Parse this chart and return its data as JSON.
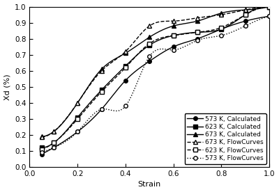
{
  "title": "",
  "xlabel": "Strain",
  "ylabel": "Xd (%)",
  "xlim": [
    0.0,
    1.0
  ],
  "ylim": [
    0.0,
    1.0
  ],
  "series": {
    "s573_calc": {
      "x": [
        0.05,
        0.1,
        0.2,
        0.3,
        0.4,
        0.5,
        0.6,
        0.7,
        0.8,
        0.9,
        1.0
      ],
      "y": [
        0.08,
        0.12,
        0.22,
        0.36,
        0.54,
        0.66,
        0.75,
        0.8,
        0.86,
        0.91,
        0.94
      ],
      "label": "573 K, Calculated",
      "linestyle": "-",
      "marker": "o",
      "color": "#000000",
      "markerfacecolor": "#000000"
    },
    "s623_calc": {
      "x": [
        0.05,
        0.1,
        0.2,
        0.3,
        0.4,
        0.5,
        0.6,
        0.7,
        0.8,
        0.9,
        1.0
      ],
      "y": [
        0.12,
        0.15,
        0.31,
        0.48,
        0.63,
        0.76,
        0.82,
        0.84,
        0.86,
        0.95,
        1.0
      ],
      "label": "623 K, Calculated",
      "linestyle": "-",
      "marker": "s",
      "color": "#000000",
      "markerfacecolor": "#000000"
    },
    "s673_calc": {
      "x": [
        0.05,
        0.1,
        0.2,
        0.3,
        0.4,
        0.5,
        0.6,
        0.7,
        0.8,
        0.9,
        1.0
      ],
      "y": [
        0.19,
        0.22,
        0.4,
        0.61,
        0.71,
        0.81,
        0.88,
        0.91,
        0.96,
        0.98,
        1.0
      ],
      "label": "673 K, Calculated",
      "linestyle": "-",
      "marker": "^",
      "color": "#000000",
      "markerfacecolor": "#000000"
    },
    "s673_flow": {
      "x": [
        0.05,
        0.1,
        0.2,
        0.3,
        0.4,
        0.5,
        0.6,
        0.7,
        0.8,
        0.9,
        1.0
      ],
      "y": [
        0.185,
        0.22,
        0.4,
        0.6,
        0.72,
        0.88,
        0.91,
        0.93,
        0.95,
        0.98,
        1.0
      ],
      "label": "673 K, FlowCurves",
      "linestyle": "--",
      "marker": "^",
      "markerfacecolor": "white",
      "color": "#000000"
    },
    "s623_flow": {
      "x": [
        0.05,
        0.1,
        0.2,
        0.3,
        0.4,
        0.5,
        0.6,
        0.7,
        0.8,
        0.9,
        1.0
      ],
      "y": [
        0.11,
        0.15,
        0.3,
        0.47,
        0.62,
        0.77,
        0.82,
        0.84,
        0.87,
        0.95,
        1.0
      ],
      "label": "623 K, FlowCurves",
      "linestyle": "--",
      "marker": "s",
      "markerfacecolor": "white",
      "color": "#000000"
    },
    "s573_flow": {
      "x": [
        0.05,
        0.1,
        0.2,
        0.3,
        0.4,
        0.5,
        0.6,
        0.7,
        0.8,
        0.9,
        1.0
      ],
      "y": [
        0.09,
        0.12,
        0.22,
        0.36,
        0.38,
        0.69,
        0.73,
        0.79,
        0.82,
        0.88,
        0.94
      ],
      "label": "573 K, FlowCurves",
      "linestyle": ":",
      "marker": "o",
      "markerfacecolor": "white",
      "color": "#000000"
    }
  },
  "xticks": [
    0.0,
    0.2,
    0.4,
    0.6,
    0.8,
    1.0
  ],
  "yticks": [
    0.0,
    0.1,
    0.2,
    0.3,
    0.4,
    0.5,
    0.6,
    0.7,
    0.8,
    0.9,
    1.0
  ],
  "legend_fontsize": 6.5,
  "axis_fontsize": 8,
  "tick_fontsize": 7.5,
  "linewidth": 1.0,
  "markersize": 4
}
